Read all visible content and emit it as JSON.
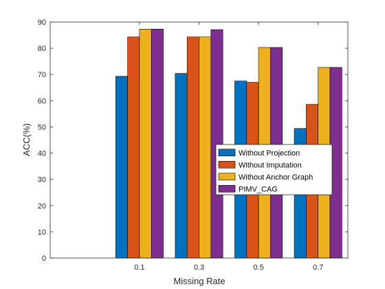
{
  "chart_data": {
    "type": "bar",
    "categories": [
      "0.1",
      "0.3",
      "0.5",
      "0.7"
    ],
    "series": [
      {
        "name": "Without Projection",
        "color": "#0072BD",
        "values": [
          69.3,
          70.4,
          67.5,
          49.4
        ]
      },
      {
        "name": "Without Imputation",
        "color": "#D95319",
        "values": [
          84.3,
          84.3,
          67.0,
          58.6
        ]
      },
      {
        "name": "Without Anchor Graph",
        "color": "#EDB120",
        "values": [
          87.3,
          84.3,
          80.3,
          72.7
        ]
      },
      {
        "name": "PIMV_CAG",
        "color": "#7E2F8E",
        "values": [
          87.3,
          87.1,
          80.3,
          72.7
        ]
      }
    ],
    "xlabel": "Missing Rate",
    "ylabel": "ACC(%)",
    "ylim": [
      0,
      90
    ],
    "yticks": [
      0,
      10,
      20,
      30,
      40,
      50,
      60,
      70,
      80,
      90
    ],
    "grid": false,
    "legend_position": "right"
  }
}
